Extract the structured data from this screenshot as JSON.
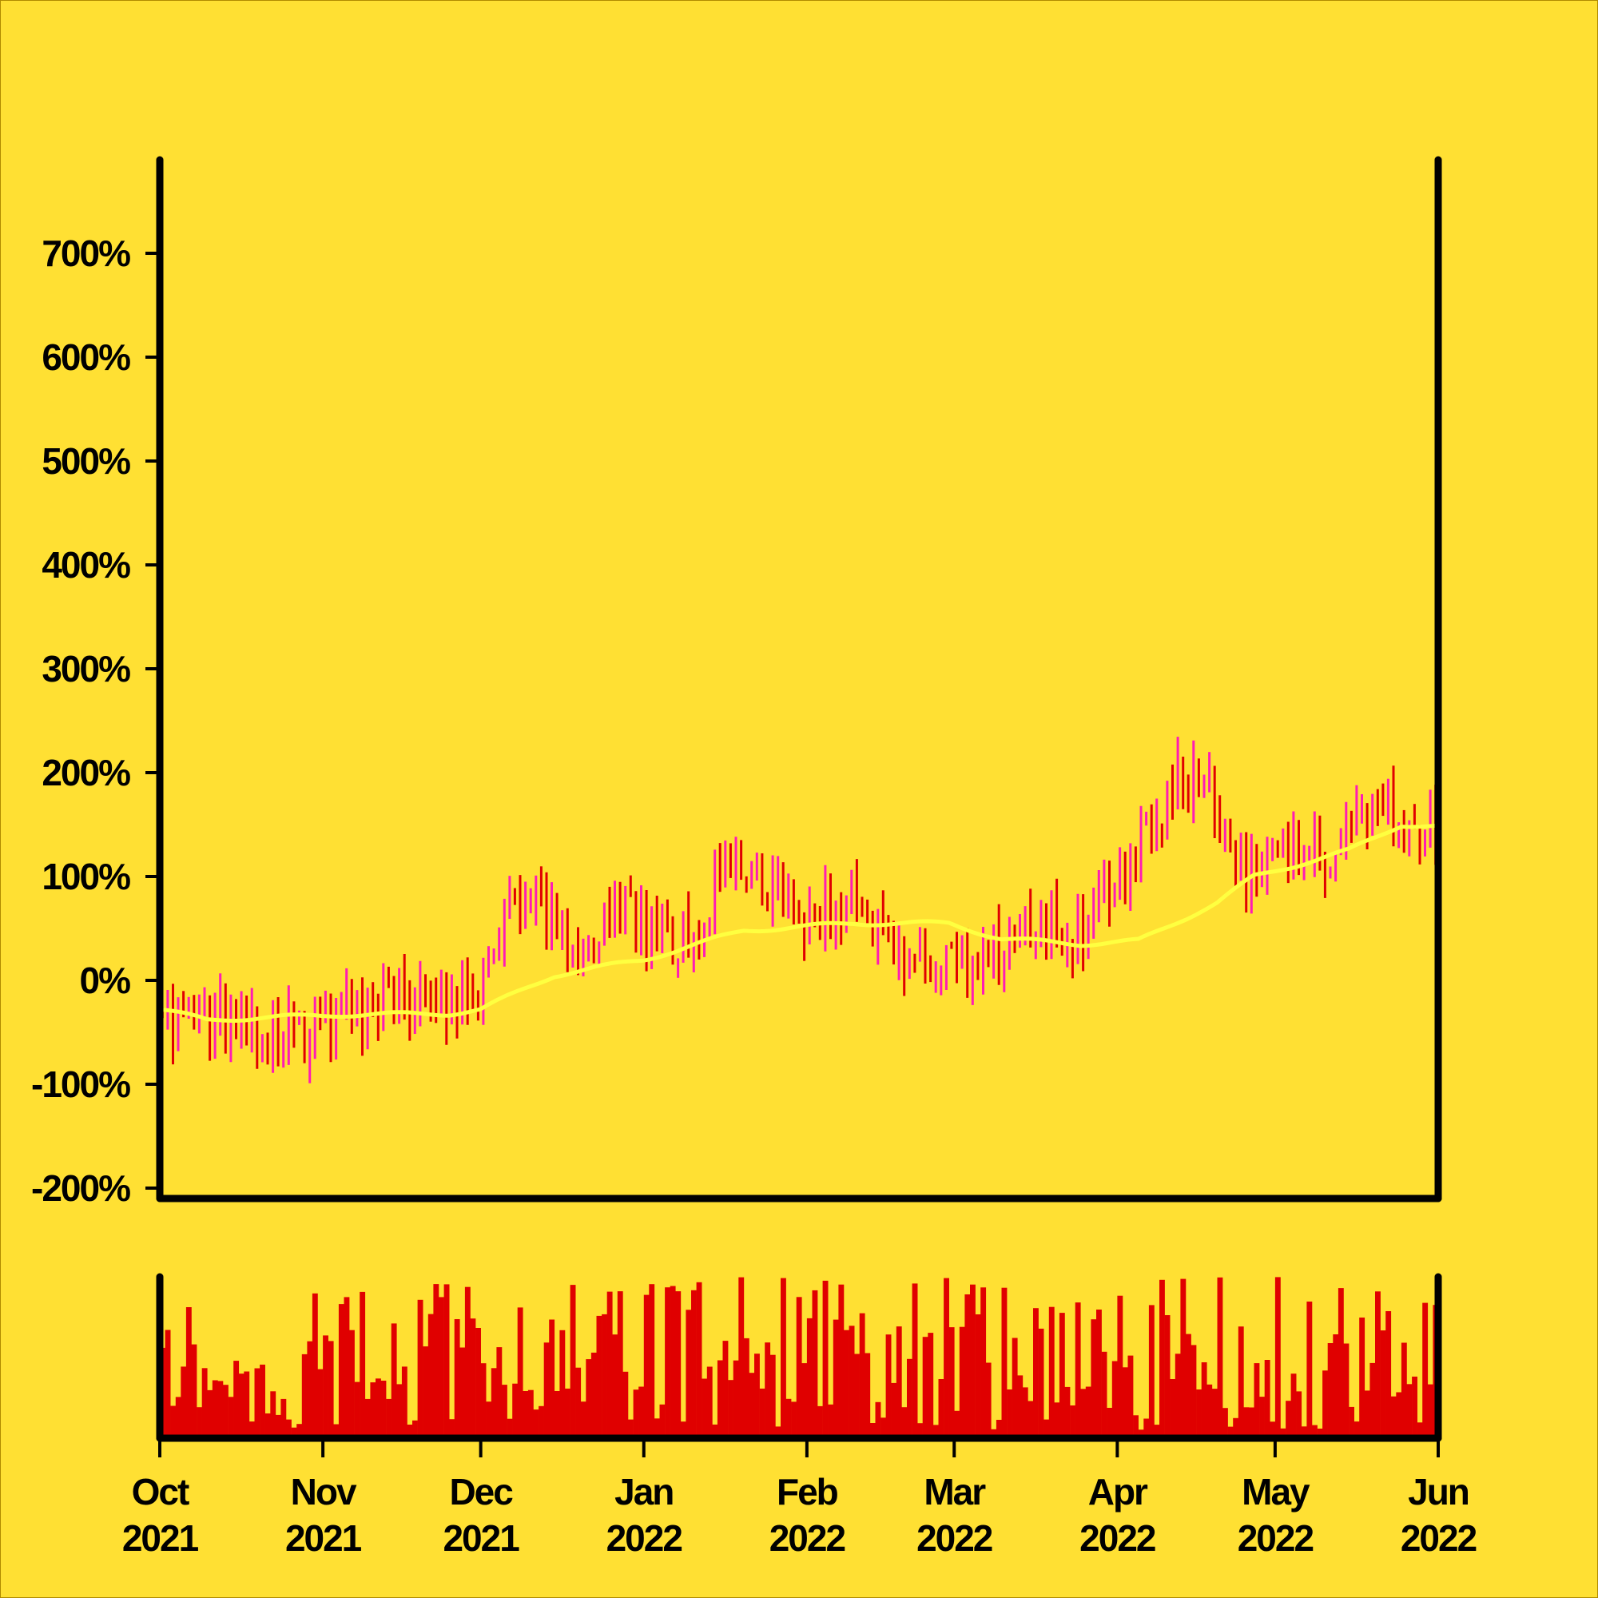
{
  "chart_data": {
    "type": "ohlc",
    "title": "",
    "xlabel": "",
    "ylabel": "",
    "x_range": [
      "2021-10-01",
      "2022-06-01"
    ],
    "ylim": [
      -2.1,
      7.9
    ],
    "y_ticks": [
      -2,
      -1,
      0,
      1,
      2,
      3,
      4,
      5,
      6,
      7
    ],
    "y_tick_labels": [
      "-200%",
      "-100%",
      "0%",
      "100%",
      "200%",
      "300%",
      "400%",
      "500%",
      "600%",
      "700%"
    ],
    "x_ticks": [
      {
        "date": "2021-10-01",
        "label": [
          "Oct",
          "2021"
        ]
      },
      {
        "date": "2021-11-01",
        "label": [
          "Nov",
          "2021"
        ]
      },
      {
        "date": "2021-12-01",
        "label": [
          "Dec",
          "2021"
        ]
      },
      {
        "date": "2022-01-01",
        "label": [
          "Jan",
          "2022"
        ]
      },
      {
        "date": "2022-02-01",
        "label": [
          "Feb",
          "2022"
        ]
      },
      {
        "date": "2022-03-01",
        "label": [
          "Mar",
          "2022"
        ]
      },
      {
        "date": "2022-04-01",
        "label": [
          "Apr",
          "2022"
        ]
      },
      {
        "date": "2022-05-01",
        "label": [
          "May",
          "2022"
        ]
      },
      {
        "date": "2022-06-01",
        "label": [
          "Jun",
          "2022"
        ]
      }
    ],
    "up_color": "#ff1cb4",
    "down_color": "#e00000",
    "trend_color": "#ffff40",
    "volume_color": "#e00000",
    "background_color": "#ffe033",
    "grid": false,
    "price_anchors": [
      {
        "date": "2021-10-01",
        "value": -0.3
      },
      {
        "date": "2021-10-16",
        "value": -0.4
      },
      {
        "date": "2021-10-28",
        "value": -0.55
      },
      {
        "date": "2021-11-10",
        "value": -0.2
      },
      {
        "date": "2021-11-22",
        "value": -0.3
      },
      {
        "date": "2021-12-01",
        "value": -0.05
      },
      {
        "date": "2021-12-06",
        "value": 0.85
      },
      {
        "date": "2021-12-20",
        "value": 0.4
      },
      {
        "date": "2021-12-26",
        "value": 0.75
      },
      {
        "date": "2022-01-06",
        "value": 0.2
      },
      {
        "date": "2022-01-18",
        "value": 1.15
      },
      {
        "date": "2022-02-01",
        "value": 0.55
      },
      {
        "date": "2022-02-10",
        "value": 0.9
      },
      {
        "date": "2022-02-17",
        "value": 0.25
      },
      {
        "date": "2022-03-03",
        "value": 0.1
      },
      {
        "date": "2022-03-16",
        "value": 0.55
      },
      {
        "date": "2022-03-24",
        "value": 0.4
      },
      {
        "date": "2022-04-02",
        "value": 1.05
      },
      {
        "date": "2022-04-12",
        "value": 2.0
      },
      {
        "date": "2022-04-18",
        "value": 1.9
      },
      {
        "date": "2022-04-25",
        "value": 1.1
      },
      {
        "date": "2022-05-10",
        "value": 1.2
      },
      {
        "date": "2022-05-22",
        "value": 1.55
      },
      {
        "date": "2022-06-01",
        "value": 1.4
      }
    ],
    "trend_anchors": [
      {
        "date": "2021-10-01",
        "value": -0.28
      },
      {
        "date": "2021-10-10",
        "value": -0.38
      },
      {
        "date": "2021-10-20",
        "value": -0.36
      },
      {
        "date": "2021-11-05",
        "value": -0.33
      },
      {
        "date": "2021-11-25",
        "value": -0.32
      },
      {
        "date": "2021-12-01",
        "value": -0.28
      },
      {
        "date": "2021-12-15",
        "value": 0.05
      },
      {
        "date": "2022-01-01",
        "value": 0.2
      },
      {
        "date": "2022-01-20",
        "value": 0.48
      },
      {
        "date": "2022-02-10",
        "value": 0.55
      },
      {
        "date": "2022-02-28",
        "value": 0.55
      },
      {
        "date": "2022-03-10",
        "value": 0.4
      },
      {
        "date": "2022-03-25",
        "value": 0.35
      },
      {
        "date": "2022-04-05",
        "value": 0.38
      },
      {
        "date": "2022-04-20",
        "value": 0.75
      },
      {
        "date": "2022-04-27",
        "value": 1.0
      },
      {
        "date": "2022-05-15",
        "value": 1.25
      },
      {
        "date": "2022-05-25",
        "value": 1.5
      },
      {
        "date": "2022-06-01",
        "value": 1.48
      }
    ],
    "volume_range": [
      0.05,
      1.0
    ]
  }
}
